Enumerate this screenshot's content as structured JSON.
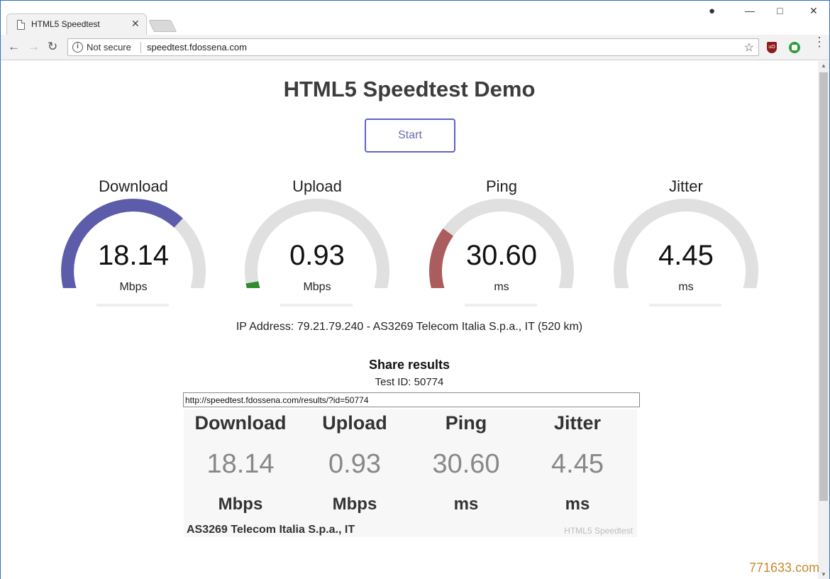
{
  "tab": {
    "title": "HTML5 Speedtest"
  },
  "address_bar": {
    "security": "Not secure",
    "url": "speedtest.fdossena.com"
  },
  "page": {
    "title": "HTML5 Speedtest Demo",
    "start_label": "Start",
    "gauges": [
      {
        "label": "Download",
        "value": "18.14",
        "unit": "Mbps",
        "fraction": 0.66,
        "color": "#5c5cab"
      },
      {
        "label": "Upload",
        "value": "0.93",
        "unit": "Mbps",
        "fraction": 0.13,
        "color": "#2e8b2e"
      },
      {
        "label": "Ping",
        "value": "30.60",
        "unit": "ms",
        "fraction": 0.3,
        "color": "#ab5c5c"
      },
      {
        "label": "Jitter",
        "value": "4.45",
        "unit": "ms",
        "fraction": 0.07,
        "color": "#ab5c5c"
      }
    ],
    "ip_info": "IP Address: 79.21.79.240 - AS3269 Telecom Italia S.p.a., IT (520 km)",
    "share_title": "Share results",
    "test_id": "Test ID: 50774",
    "result_url": "http://speedtest.fdossena.com/results/?id=50774",
    "result_card": {
      "columns": [
        {
          "label": "Download",
          "value": "18.14",
          "unit": "Mbps"
        },
        {
          "label": "Upload",
          "value": "0.93",
          "unit": "Mbps"
        },
        {
          "label": "Ping",
          "value": "30.60",
          "unit": "ms"
        },
        {
          "label": "Jitter",
          "value": "4.45",
          "unit": "ms"
        }
      ],
      "isp": "AS3269 Telecom Italia S.p.a., IT",
      "brand": "HTML5 Speedtest"
    }
  },
  "watermark": "771633.com",
  "icons": {
    "back": "back-arrow-icon",
    "forward": "forward-arrow-icon",
    "reload": "reload-icon",
    "info": "info-icon",
    "star": "bookmark-star-icon"
  }
}
